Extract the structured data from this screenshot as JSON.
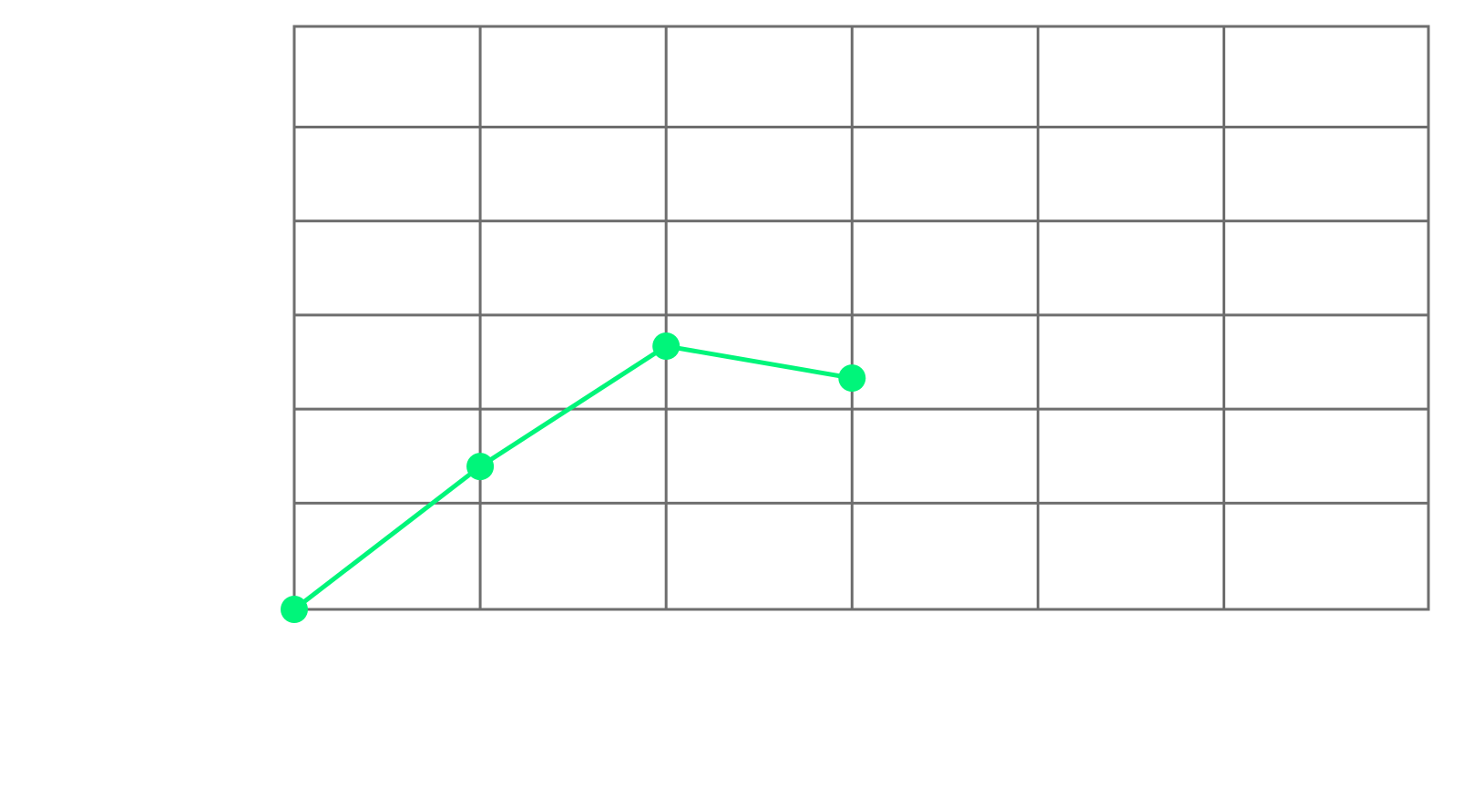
{
  "chart_data": {
    "type": "line",
    "title": "",
    "xlabel": "",
    "ylabel": "",
    "x": [
      0,
      1,
      2,
      3
    ],
    "series": [
      {
        "values": [
          0,
          1.52,
          2.8,
          2.46
        ]
      }
    ],
    "xlim": [
      0,
      6.1
    ],
    "ylim": [
      0,
      6.2
    ],
    "x_gridlines": [
      0,
      1,
      2,
      3,
      4,
      5
    ],
    "y_gridlines": [
      0,
      1.13,
      2.13,
      3.13,
      4.13,
      5.13,
      6.2
    ],
    "grid": true,
    "legend": "none",
    "colors": {
      "grid": "#6e6e6e",
      "line": "#00f57a",
      "background": "#ffffff"
    }
  }
}
